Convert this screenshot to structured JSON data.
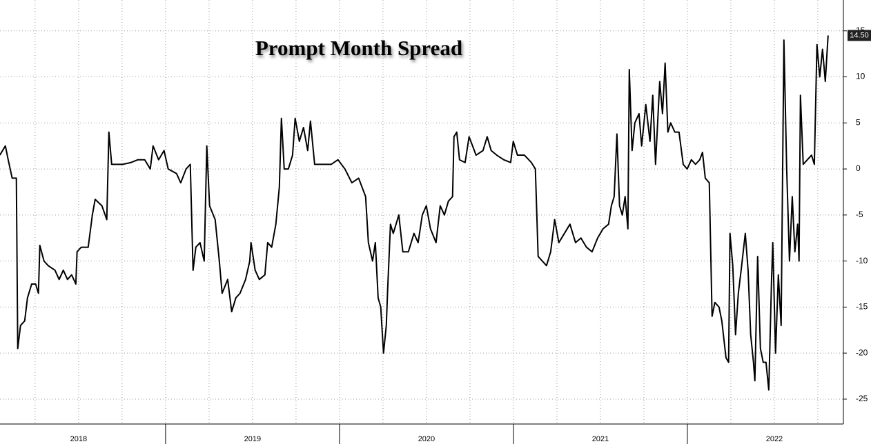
{
  "chart_data": {
    "type": "line",
    "title": "Prompt Month Spread",
    "x": [
      2018.047,
      2018.079,
      2018.095,
      2018.118,
      2018.142,
      2018.15,
      2018.166,
      2018.19,
      2018.206,
      2018.23,
      2018.253,
      2018.269,
      2018.277,
      2018.301,
      2018.325,
      2018.364,
      2018.388,
      2018.412,
      2018.436,
      2018.46,
      2018.484,
      2018.491,
      2018.515,
      2018.555,
      2018.579,
      2018.595,
      2018.634,
      2018.662,
      2018.674,
      2018.69,
      2018.722,
      2018.753,
      2018.801,
      2018.841,
      2018.88,
      2018.912,
      2018.928,
      2018.96,
      2018.991,
      2019.015,
      2019.063,
      2019.087,
      2019.118,
      2019.142,
      2019.158,
      2019.174,
      2019.198,
      2019.222,
      2019.237,
      2019.253,
      2019.285,
      2019.309,
      2019.325,
      2019.357,
      2019.38,
      2019.404,
      2019.428,
      2019.46,
      2019.484,
      2019.491,
      2019.515,
      2019.539,
      2019.571,
      2019.587,
      2019.61,
      2019.634,
      2019.654,
      2019.666,
      2019.682,
      2019.706,
      2019.73,
      2019.745,
      2019.769,
      2019.793,
      2019.817,
      2019.833,
      2019.857,
      2019.912,
      2019.952,
      2019.991,
      2020.031,
      2020.071,
      2020.11,
      2020.15,
      2020.166,
      2020.19,
      2020.206,
      2020.222,
      2020.237,
      2020.253,
      2020.269,
      2020.277,
      2020.293,
      2020.309,
      2020.341,
      2020.364,
      2020.396,
      2020.428,
      2020.452,
      2020.476,
      2020.499,
      2020.523,
      2020.555,
      2020.579,
      2020.603,
      2020.626,
      2020.65,
      2020.658,
      2020.674,
      2020.69,
      2020.722,
      2020.745,
      2020.785,
      2020.825,
      2020.849,
      2020.872,
      2020.904,
      2020.944,
      2020.984,
      2020.999,
      2021.023,
      2021.063,
      2021.103,
      2021.126,
      2021.142,
      2021.166,
      2021.19,
      2021.214,
      2021.237,
      2021.261,
      2021.293,
      2021.325,
      2021.357,
      2021.388,
      2021.42,
      2021.452,
      2021.484,
      2021.515,
      2021.547,
      2021.563,
      2021.579,
      2021.595,
      2021.61,
      2021.626,
      2021.642,
      2021.658,
      2021.666,
      2021.682,
      2021.698,
      2021.722,
      2021.737,
      2021.761,
      2021.785,
      2021.801,
      2021.817,
      2021.841,
      2021.857,
      2021.872,
      2021.888,
      2021.904,
      2021.928,
      2021.952,
      2021.976,
      2021.999,
      2022.023,
      2022.047,
      2022.071,
      2022.087,
      2022.103,
      2022.126,
      2022.142,
      2022.158,
      2022.182,
      2022.198,
      2022.222,
      2022.237,
      2022.245,
      2022.261,
      2022.277,
      2022.293,
      2022.309,
      2022.333,
      2022.349,
      2022.364,
      2022.38,
      2022.388,
      2022.404,
      2022.42,
      2022.436,
      2022.452,
      2022.468,
      2022.484,
      2022.491,
      2022.507,
      2022.523,
      2022.539,
      2022.555,
      2022.571,
      2022.587,
      2022.603,
      2022.618,
      2022.634,
      2022.642,
      2022.65,
      2022.666,
      2022.69,
      2022.714,
      2022.73,
      2022.745,
      2022.761,
      2022.777,
      2022.793,
      2022.809
    ],
    "series": [
      {
        "color": "#000000",
        "values": [
          1.5,
          2.5,
          1,
          -1,
          -1,
          -19.5,
          -17,
          -16.5,
          -14,
          -12.5,
          -12.5,
          -13.5,
          -8.3,
          -10,
          -10.5,
          -11,
          -12,
          -11,
          -12,
          -11.5,
          -12.5,
          -9,
          -8.5,
          -8.5,
          -5,
          -3.3,
          -4,
          -5.5,
          4,
          0.5,
          0.5,
          0.5,
          0.7,
          1,
          1,
          0,
          2.5,
          1,
          2,
          0,
          -0.5,
          -1.5,
          0,
          0.5,
          -11,
          -8.5,
          -8,
          -10,
          2.5,
          -4,
          -5.5,
          -10,
          -13.5,
          -12,
          -15.5,
          -14,
          -13.5,
          -12,
          -10,
          -8,
          -11,
          -12,
          -11.5,
          -8,
          -8.5,
          -6,
          -2,
          5.5,
          0,
          0,
          1.5,
          5.5,
          3,
          4.5,
          2,
          5.2,
          0.5,
          0.5,
          0.5,
          1,
          0,
          -1.5,
          -1,
          -3,
          -8,
          -10,
          -8,
          -14,
          -15,
          -20,
          -17,
          -13,
          -6,
          -7,
          -5,
          -9,
          -9,
          -7,
          -8,
          -5,
          -4,
          -6.5,
          -8,
          -4,
          -5,
          -3.5,
          -3,
          3.5,
          4,
          1,
          0.7,
          3.5,
          1.5,
          2,
          3.5,
          2,
          1.5,
          1,
          0.7,
          3,
          1.5,
          1.5,
          0.7,
          0,
          -9.5,
          -10,
          -10.5,
          -9,
          -5.5,
          -8,
          -7,
          -6,
          -8,
          -7.5,
          -8.5,
          -9,
          -7.5,
          -6.5,
          -6,
          -4,
          -3,
          3.8,
          -4,
          -5,
          -3,
          -6.5,
          10.8,
          2,
          5,
          6,
          2.5,
          7,
          3,
          8,
          0.5,
          9.5,
          6,
          11.5,
          4,
          5,
          4,
          4,
          0.5,
          0,
          1,
          0.5,
          1,
          1.8,
          -1,
          -1.5,
          -16,
          -14.5,
          -15,
          -16.5,
          -20.5,
          -21,
          -7,
          -10.5,
          -18,
          -13.5,
          -11,
          -7,
          -11,
          -18,
          -21,
          -23,
          -9.5,
          -19.5,
          -21,
          -21,
          -24,
          -12,
          -8,
          -20,
          -11.5,
          -17,
          14,
          0,
          -10,
          -3,
          -9,
          -6,
          -10,
          8,
          0.5,
          1,
          1.5,
          0.5,
          13.5,
          10,
          13,
          9.5,
          14.5
        ]
      }
    ],
    "last_value_label": "14.50",
    "xlim": [
      2018.048,
      2022.897
    ],
    "xticks": [
      {
        "value": 2018,
        "label": "2018"
      },
      {
        "value": 2019,
        "label": "2019"
      },
      {
        "value": 2020,
        "label": "2020"
      },
      {
        "value": 2021,
        "label": "2021"
      },
      {
        "value": 2022,
        "label": "2022"
      }
    ],
    "ylim": [
      -27.7,
      18.35
    ],
    "yticks": [
      -25,
      -20,
      -15,
      -10,
      -5,
      0,
      5,
      10,
      15
    ],
    "grid": true
  }
}
